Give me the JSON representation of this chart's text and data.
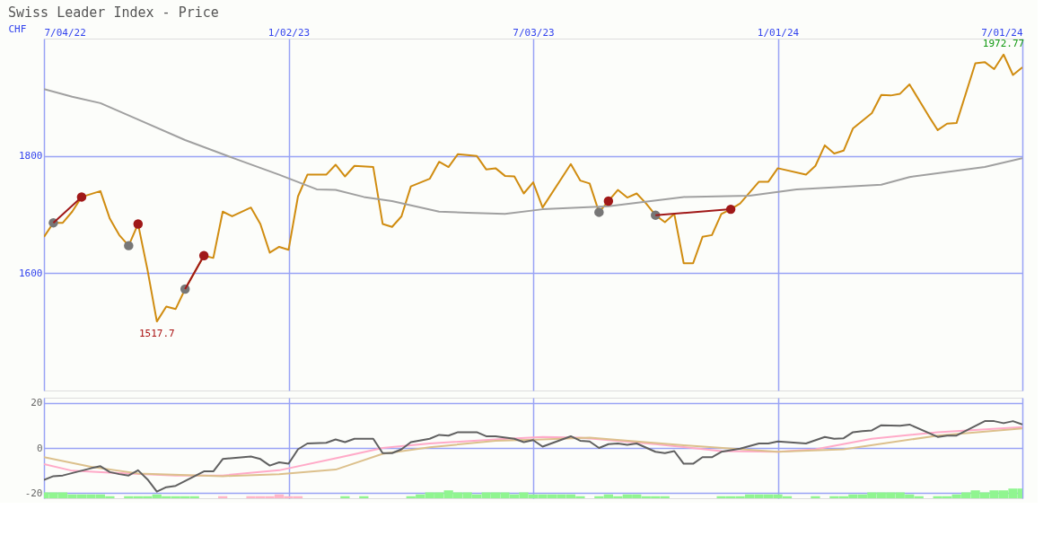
{
  "chart_data": [
    {
      "type": "line",
      "title": "Swiss Leader Index - Price",
      "ylabel": "CHF",
      "xlim": [
        "2022-07-04",
        "2024-07-01"
      ],
      "xticks": [
        {
          "value": "2022-07-04",
          "label": "7/04/22"
        },
        {
          "value": "2023-01-02",
          "label": "1/02/23"
        },
        {
          "value": "2023-07-03",
          "label": "7/03/23"
        },
        {
          "value": "2024-01-01",
          "label": "1/01/24"
        },
        {
          "value": "2024-07-01",
          "label": "7/01/24"
        }
      ],
      "ylim": [
        1400,
        2000
      ],
      "yticks": [
        1600,
        1800
      ],
      "grid": true,
      "x": [
        "2022-07-04",
        "2022-07-11",
        "2022-07-18",
        "2022-07-25",
        "2022-08-01",
        "2022-08-15",
        "2022-08-22",
        "2022-08-29",
        "2022-09-05",
        "2022-09-12",
        "2022-09-19",
        "2022-09-26",
        "2022-10-03",
        "2022-10-10",
        "2022-10-17",
        "2022-10-31",
        "2022-11-07",
        "2022-11-14",
        "2022-11-21",
        "2022-12-05",
        "2022-12-12",
        "2022-12-19",
        "2022-12-26",
        "2023-01-02",
        "2023-01-09",
        "2023-01-16",
        "2023-01-30",
        "2023-02-06",
        "2023-02-13",
        "2023-02-20",
        "2023-03-06",
        "2023-03-13",
        "2023-03-20",
        "2023-03-27",
        "2023-04-03",
        "2023-04-17",
        "2023-04-24",
        "2023-05-01",
        "2023-05-08",
        "2023-05-22",
        "2023-05-29",
        "2023-06-05",
        "2023-06-12",
        "2023-06-19",
        "2023-06-26",
        "2023-07-03",
        "2023-07-10",
        "2023-07-31",
        "2023-08-07",
        "2023-08-14",
        "2023-08-21",
        "2023-08-28",
        "2023-09-04",
        "2023-09-11",
        "2023-09-18",
        "2023-09-25",
        "2023-10-02",
        "2023-10-09",
        "2023-10-16",
        "2023-10-23",
        "2023-10-30",
        "2023-11-06",
        "2023-11-13",
        "2023-11-20",
        "2023-11-27",
        "2023-12-04",
        "2023-12-18",
        "2023-12-25",
        "2024-01-01",
        "2024-01-22",
        "2024-01-29",
        "2024-02-05",
        "2024-02-12",
        "2024-02-19",
        "2024-02-26",
        "2024-03-04",
        "2024-03-11",
        "2024-03-18",
        "2024-03-25",
        "2024-04-01",
        "2024-04-08",
        "2024-04-22",
        "2024-04-29",
        "2024-05-06",
        "2024-05-13",
        "2024-05-27",
        "2024-06-03",
        "2024-06-10",
        "2024-06-17",
        "2024-06-24",
        "2024-07-01"
      ],
      "series": [
        {
          "color": "#d08c10",
          "values": [
            1662,
            1686,
            1686,
            1705,
            1730,
            1740,
            1693,
            1665,
            1647,
            1684,
            1606,
            1517.7,
            1543,
            1539,
            1573,
            1630,
            1626,
            1705,
            1697,
            1712,
            1684,
            1635,
            1645,
            1640,
            1731,
            1768,
            1768,
            1785,
            1765,
            1783,
            1781,
            1684,
            1679,
            1697,
            1748,
            1761,
            1790,
            1781,
            1803,
            1800,
            1777,
            1779,
            1766,
            1765,
            1736,
            1755,
            1712,
            1786,
            1758,
            1753,
            1704,
            1723,
            1742,
            1729,
            1736,
            1719,
            1699,
            1687,
            1701,
            1617,
            1617,
            1662,
            1665,
            1701,
            1709,
            1719,
            1756,
            1756,
            1779,
            1768,
            1783,
            1818,
            1804,
            1809,
            1847,
            1860,
            1873,
            1904,
            1903,
            1906,
            1922,
            1869,
            1844,
            1855,
            1856,
            1958,
            1960,
            1948,
            1972.77,
            1938,
            1951
          ]
        },
        {
          "color": "#a0a0a0",
          "x": [
            "2022-07-04",
            "2022-07-25",
            "2022-08-15",
            "2022-09-12",
            "2022-10-17",
            "2022-11-21",
            "2022-12-26",
            "2023-01-23",
            "2023-02-06",
            "2023-02-27",
            "2023-03-20",
            "2023-04-24",
            "2023-05-15",
            "2023-06-12",
            "2023-07-10",
            "2023-08-28",
            "2023-10-23",
            "2023-12-11",
            "2024-01-15",
            "2024-03-18",
            "2024-04-08",
            "2024-06-03",
            "2024-07-01"
          ],
          "values": [
            1914,
            1901,
            1890,
            1862,
            1827,
            1797,
            1768,
            1743,
            1742,
            1730,
            1723,
            1705,
            1703,
            1701,
            1709,
            1714,
            1730,
            1732,
            1743,
            1751,
            1764,
            1781,
            1796
          ]
        },
        {
          "type": "scatter",
          "color": "#777777",
          "x": [
            "2022-07-11",
            "2022-09-05",
            "2022-10-17",
            "2023-08-21",
            "2023-10-02"
          ],
          "values": [
            1686,
            1647,
            1573,
            1704,
            1699
          ]
        },
        {
          "type": "line",
          "color": "#a01818",
          "x": [
            "2022-07-11",
            "2022-08-01"
          ],
          "values": [
            1686,
            1730
          ]
        },
        {
          "type": "line",
          "color": "#a01818",
          "x": [
            "2022-10-17",
            "2022-10-31"
          ],
          "values": [
            1573,
            1630
          ]
        },
        {
          "type": "line",
          "color": "#a01818",
          "x": [
            "2023-10-02",
            "2023-11-27"
          ],
          "values": [
            1699,
            1709
          ]
        },
        {
          "type": "scatter",
          "color": "#a01818",
          "x": [
            "2022-08-01",
            "2022-09-12",
            "2022-10-31",
            "2023-08-28",
            "2023-11-27"
          ],
          "values": [
            1730,
            1684,
            1630,
            1723,
            1709
          ]
        }
      ],
      "annotations": [
        {
          "text": "1517.7",
          "x": "2022-09-26",
          "y": 1517.7
        },
        {
          "text": "1972.77",
          "x": "2024-06-17",
          "y": 1972.77
        }
      ]
    },
    {
      "type": "line",
      "xlim": [
        "2022-07-04",
        "2024-07-01"
      ],
      "xticks": [
        {
          "value": "2022-07-04",
          "label": null
        },
        {
          "value": "2023-01-02",
          "label": null
        },
        {
          "value": "2023-07-03",
          "label": null
        },
        {
          "value": "2024-01-01",
          "label": null
        },
        {
          "value": "2024-07-01",
          "label": null
        }
      ],
      "ylim": [
        -22.3,
        22.3
      ],
      "yticks": [
        -20,
        0,
        20
      ],
      "grid": true,
      "tick_labels": "y",
      "series": [
        {
          "type": "bar",
          "x": [
            "2022-07-04",
            "2022-07-11",
            "2022-07-18",
            "2022-07-25",
            "2022-08-01",
            "2022-08-08",
            "2022-08-15",
            "2022-08-22",
            "2022-09-05",
            "2022-09-12",
            "2022-09-19",
            "2022-09-26",
            "2022-10-03",
            "2022-10-10",
            "2022-10-17",
            "2022-10-24",
            "2022-11-14",
            "2022-12-05",
            "2022-12-12",
            "2022-12-19",
            "2022-12-26",
            "2023-01-02",
            "2023-01-09",
            "2023-02-13",
            "2023-02-27",
            "2023-04-03",
            "2023-04-10",
            "2023-04-17",
            "2023-04-24",
            "2023-05-01",
            "2023-05-08",
            "2023-05-15",
            "2023-05-22",
            "2023-05-29",
            "2023-06-05",
            "2023-06-12",
            "2023-06-19",
            "2023-06-26",
            "2023-07-03",
            "2023-07-10",
            "2023-07-17",
            "2023-07-24",
            "2023-07-31",
            "2023-08-07",
            "2023-08-21",
            "2023-08-28",
            "2023-09-04",
            "2023-09-11",
            "2023-09-18",
            "2023-09-25",
            "2023-10-02",
            "2023-10-09",
            "2023-11-20",
            "2023-11-27",
            "2023-12-04",
            "2023-12-11",
            "2023-12-18",
            "2023-12-25",
            "2024-01-01",
            "2024-01-08",
            "2024-01-29",
            "2024-02-12",
            "2024-02-19",
            "2024-02-26",
            "2024-03-04",
            "2024-03-11",
            "2024-03-18",
            "2024-03-25",
            "2024-04-01",
            "2024-04-08",
            "2024-04-15",
            "2024-04-29",
            "2024-05-06",
            "2024-05-13",
            "2024-05-20",
            "2024-05-27",
            "2024-06-03",
            "2024-06-10",
            "2024-06-17",
            "2024-06-24",
            "2024-07-01"
          ],
          "base": [
            -22.3,
            -22.3,
            -22.3,
            -22.3,
            -22.3,
            -22.3,
            -22.3,
            -22.3,
            -22.3,
            -22.3,
            -22.3,
            -22.3,
            -22.3,
            -22.3,
            -22.3,
            -22.3,
            -22.3,
            -22.3,
            -22.3,
            -22.3,
            -22.3,
            -22.3,
            -22.3,
            -22.3,
            -22.3,
            -22.3,
            -22.3,
            -22.3,
            -22.3,
            -22.3,
            -22.3,
            -22.3,
            -22.3,
            -22.3,
            -22.3,
            -22.3,
            -22.3,
            -22.3,
            -22.3,
            -22.3,
            -22.3,
            -22.3,
            -22.3,
            -22.3,
            -22.3,
            -22.3,
            -22.3,
            -22.3,
            -22.3,
            -22.3,
            -22.3,
            -22.3,
            -22.3,
            -22.3,
            -22.3,
            -22.3,
            -22.3,
            -22.3,
            -22.3,
            -22.3,
            -22.3,
            -22.3,
            -22.3,
            -22.3,
            -22.3,
            -22.3,
            -22.3,
            -22.3,
            -22.3,
            -22.3,
            -22.3,
            -22.3,
            -22.3,
            -22.3,
            -22.3,
            -22.3,
            -22.3,
            -22.3,
            -22.3,
            -22.3,
            -22.3
          ],
          "values": [
            2.6,
            2.6,
            2.6,
            1.7,
            1.7,
            1.7,
            1.7,
            0.9,
            0.9,
            0.9,
            0.9,
            1.7,
            0.9,
            0.9,
            0.9,
            0.9,
            0.9,
            0.9,
            0.9,
            0.9,
            1.7,
            0.9,
            0.9,
            0.9,
            0.9,
            0.9,
            1.7,
            2.6,
            2.6,
            3.5,
            2.6,
            2.6,
            1.7,
            2.6,
            2.6,
            2.6,
            1.7,
            2.6,
            1.7,
            1.7,
            1.7,
            1.7,
            1.7,
            0.9,
            0.9,
            1.7,
            0.9,
            1.7,
            1.7,
            0.9,
            0.9,
            0.9,
            0.9,
            0.9,
            0.9,
            1.7,
            1.7,
            1.7,
            1.7,
            0.9,
            0.9,
            0.9,
            0.9,
            1.7,
            1.7,
            2.6,
            2.6,
            2.6,
            2.6,
            1.7,
            0.9,
            0.9,
            0.9,
            1.7,
            2.6,
            3.5,
            2.6,
            3.5,
            3.5,
            4.3,
            4.3
          ],
          "colors": [
            "#90f590",
            "#90f590",
            "#90f590",
            "#90f590",
            "#90f590",
            "#90f590",
            "#90f590",
            "#90f590",
            "#90f590",
            "#90f590",
            "#90f590",
            "#90f590",
            "#90f590",
            "#90f590",
            "#90f590",
            "#90f590",
            "#ffb6c8",
            "#ffb6c8",
            "#ffb6c8",
            "#ffb6c8",
            "#ffb6c8",
            "#ffb6c8",
            "#ffb6c8",
            "#90f590",
            "#90f590",
            "#90f590",
            "#90f590",
            "#90f590",
            "#90f590",
            "#90f590",
            "#90f590",
            "#90f590",
            "#90f590",
            "#90f590",
            "#90f590",
            "#90f590",
            "#90f590",
            "#90f590",
            "#90f590",
            "#90f590",
            "#90f590",
            "#90f590",
            "#90f590",
            "#90f590",
            "#90f590",
            "#90f590",
            "#90f590",
            "#90f590",
            "#90f590",
            "#90f590",
            "#90f590",
            "#90f590",
            "#90f590",
            "#90f590",
            "#90f590",
            "#90f590",
            "#90f590",
            "#90f590",
            "#90f590",
            "#90f590",
            "#90f590",
            "#90f590",
            "#90f590",
            "#90f590",
            "#90f590",
            "#90f590",
            "#90f590",
            "#90f590",
            "#90f590",
            "#90f590",
            "#90f590",
            "#90f590",
            "#90f590",
            "#90f590",
            "#90f590",
            "#90f590",
            "#90f590",
            "#90f590",
            "#90f590",
            "#90f590",
            "#90f590"
          ]
        },
        {
          "color": "#ffaac8",
          "x": [
            "2022-07-04",
            "2022-07-25",
            "2022-08-22",
            "2022-10-10",
            "2022-11-14",
            "2022-12-26",
            "2023-02-06",
            "2023-03-13",
            "2023-04-17",
            "2023-06-05",
            "2023-07-10",
            "2023-08-07",
            "2023-10-02",
            "2023-11-20",
            "2024-01-01",
            "2024-01-29",
            "2024-03-11",
            "2024-04-29",
            "2024-07-01"
          ],
          "values": [
            -7.2,
            -10.1,
            -11,
            -12.2,
            -12.2,
            -9.9,
            -4.6,
            0,
            2,
            3.8,
            4.9,
            4.6,
            1.7,
            -1.4,
            -1.7,
            -0.6,
            4.1,
            7,
            9.3
          ]
        },
        {
          "color": "#dcc08c",
          "x": [
            "2022-07-04",
            "2022-08-08",
            "2022-09-12",
            "2022-11-14",
            "2022-12-26",
            "2023-02-06",
            "2023-03-13",
            "2023-04-17",
            "2023-06-05",
            "2023-07-10",
            "2023-08-14",
            "2023-10-23",
            "2024-01-01",
            "2024-02-19",
            "2024-04-29",
            "2024-07-01"
          ],
          "values": [
            -4.1,
            -8.4,
            -11.3,
            -12.5,
            -11.6,
            -9.6,
            -2.6,
            0.3,
            3.2,
            3.8,
            4.6,
            1.2,
            -1.7,
            -0.6,
            5.5,
            8.7
          ]
        },
        {
          "color": "#606060",
          "x": [
            "2022-07-04",
            "2022-07-11",
            "2022-07-18",
            "2022-08-08",
            "2022-08-15",
            "2022-08-22",
            "2022-08-29",
            "2022-09-05",
            "2022-09-12",
            "2022-09-19",
            "2022-09-26",
            "2022-10-03",
            "2022-10-10",
            "2022-10-31",
            "2022-11-07",
            "2022-11-14",
            "2022-12-05",
            "2022-12-12",
            "2022-12-19",
            "2022-12-26",
            "2023-01-02",
            "2023-01-09",
            "2023-01-16",
            "2023-01-30",
            "2023-02-06",
            "2023-02-13",
            "2023-02-20",
            "2023-03-06",
            "2023-03-13",
            "2023-03-20",
            "2023-03-27",
            "2023-04-03",
            "2023-04-17",
            "2023-04-24",
            "2023-05-01",
            "2023-05-08",
            "2023-05-22",
            "2023-05-29",
            "2023-06-05",
            "2023-06-19",
            "2023-06-26",
            "2023-07-03",
            "2023-07-10",
            "2023-07-31",
            "2023-08-07",
            "2023-08-14",
            "2023-08-21",
            "2023-08-28",
            "2023-09-04",
            "2023-09-11",
            "2023-09-18",
            "2023-10-02",
            "2023-10-09",
            "2023-10-16",
            "2023-10-23",
            "2023-10-30",
            "2023-11-06",
            "2023-11-13",
            "2023-11-20",
            "2023-12-04",
            "2023-12-18",
            "2023-12-25",
            "2024-01-01",
            "2024-01-22",
            "2024-02-05",
            "2024-02-12",
            "2024-02-19",
            "2024-02-26",
            "2024-03-04",
            "2024-03-11",
            "2024-03-18",
            "2024-04-01",
            "2024-04-08",
            "2024-04-29",
            "2024-05-06",
            "2024-05-13",
            "2024-06-03",
            "2024-06-10",
            "2024-06-17",
            "2024-06-24",
            "2024-07-01"
          ],
          "values": [
            -14.2,
            -12.5,
            -12.2,
            -9,
            -8.1,
            -10.7,
            -11.6,
            -12.2,
            -9.9,
            -13.9,
            -19.4,
            -17.4,
            -16.8,
            -10.4,
            -10.4,
            -4.9,
            -3.8,
            -4.9,
            -7.8,
            -6.4,
            -7,
            -0.6,
            2,
            2.3,
            3.8,
            2.6,
            4.1,
            4.1,
            -2.3,
            -2.3,
            -0.6,
            2.6,
            4.1,
            5.8,
            5.5,
            7,
            7,
            5.2,
            5.2,
            4.1,
            2.6,
            3.5,
            0.6,
            5.2,
            3.2,
            2.9,
            0,
            1.7,
            2,
            1.4,
            2,
            -1.7,
            -2.3,
            -1.4,
            -7,
            -7,
            -4.1,
            -4.1,
            -1.7,
            -0.3,
            2,
            2,
            2.9,
            2,
            4.9,
            4.1,
            4.3,
            7,
            7.5,
            7.8,
            10.1,
            9.9,
            10.4,
            4.9,
            5.5,
            5.5,
            11.9,
            11.9,
            11,
            11.9,
            10.4
          ]
        }
      ]
    }
  ]
}
